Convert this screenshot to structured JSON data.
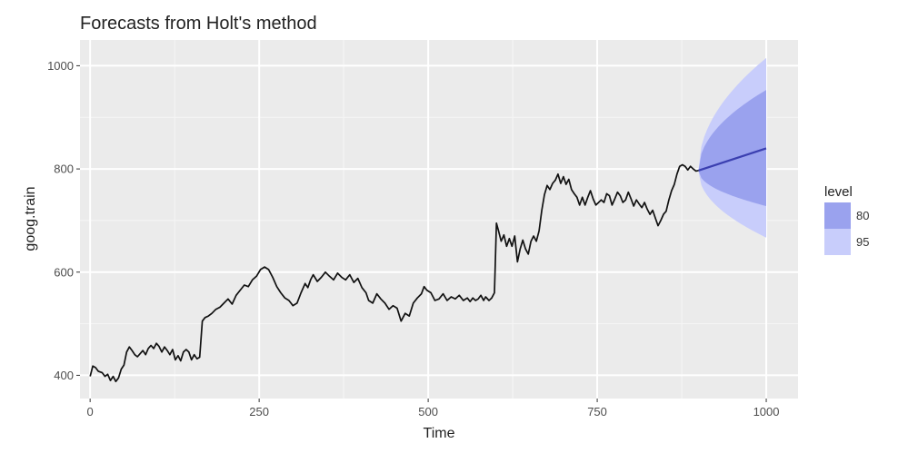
{
  "chart_data": {
    "type": "line",
    "title": "Forecasts from Holt's method",
    "xlabel": "Time",
    "ylabel": "goog.train",
    "xlim": [
      -15,
      1047
    ],
    "ylim": [
      355,
      1050
    ],
    "x_ticks": [
      0,
      250,
      500,
      750,
      1000
    ],
    "y_ticks": [
      400,
      600,
      800,
      1000
    ],
    "grid": true,
    "legend_position": "right",
    "legend": {
      "title": "level",
      "items": [
        {
          "label": "80",
          "color": "#9aa2ee"
        },
        {
          "label": "95",
          "color": "#c8cdfb"
        }
      ]
    },
    "series": [
      {
        "kind": "observed",
        "color": "#111111",
        "points": [
          [
            0,
            398
          ],
          [
            4,
            418
          ],
          [
            8,
            415
          ],
          [
            12,
            408
          ],
          [
            18,
            405
          ],
          [
            22,
            398
          ],
          [
            26,
            402
          ],
          [
            30,
            390
          ],
          [
            34,
            398
          ],
          [
            38,
            388
          ],
          [
            42,
            395
          ],
          [
            46,
            412
          ],
          [
            50,
            420
          ],
          [
            54,
            445
          ],
          [
            58,
            455
          ],
          [
            62,
            448
          ],
          [
            66,
            440
          ],
          [
            70,
            436
          ],
          [
            74,
            442
          ],
          [
            78,
            448
          ],
          [
            82,
            440
          ],
          [
            86,
            452
          ],
          [
            90,
            458
          ],
          [
            94,
            452
          ],
          [
            98,
            462
          ],
          [
            102,
            456
          ],
          [
            106,
            445
          ],
          [
            110,
            455
          ],
          [
            114,
            448
          ],
          [
            118,
            440
          ],
          [
            122,
            450
          ],
          [
            126,
            430
          ],
          [
            130,
            438
          ],
          [
            134,
            428
          ],
          [
            138,
            445
          ],
          [
            142,
            450
          ],
          [
            146,
            445
          ],
          [
            150,
            430
          ],
          [
            154,
            440
          ],
          [
            158,
            432
          ],
          [
            162,
            435
          ],
          [
            166,
            505
          ],
          [
            170,
            512
          ],
          [
            175,
            515
          ],
          [
            180,
            520
          ],
          [
            186,
            528
          ],
          [
            192,
            532
          ],
          [
            198,
            540
          ],
          [
            204,
            548
          ],
          [
            210,
            538
          ],
          [
            216,
            555
          ],
          [
            222,
            565
          ],
          [
            228,
            575
          ],
          [
            234,
            572
          ],
          [
            240,
            585
          ],
          [
            246,
            592
          ],
          [
            252,
            605
          ],
          [
            258,
            610
          ],
          [
            264,
            605
          ],
          [
            270,
            590
          ],
          [
            276,
            572
          ],
          [
            282,
            560
          ],
          [
            288,
            550
          ],
          [
            294,
            545
          ],
          [
            300,
            535
          ],
          [
            306,
            540
          ],
          [
            312,
            560
          ],
          [
            318,
            578
          ],
          [
            322,
            570
          ],
          [
            326,
            585
          ],
          [
            330,
            595
          ],
          [
            336,
            582
          ],
          [
            342,
            590
          ],
          [
            348,
            600
          ],
          [
            354,
            592
          ],
          [
            360,
            585
          ],
          [
            366,
            598
          ],
          [
            372,
            590
          ],
          [
            378,
            585
          ],
          [
            384,
            595
          ],
          [
            390,
            580
          ],
          [
            396,
            588
          ],
          [
            402,
            570
          ],
          [
            408,
            560
          ],
          [
            412,
            545
          ],
          [
            418,
            540
          ],
          [
            424,
            558
          ],
          [
            430,
            548
          ],
          [
            436,
            540
          ],
          [
            442,
            528
          ],
          [
            448,
            535
          ],
          [
            454,
            530
          ],
          [
            460,
            505
          ],
          [
            466,
            520
          ],
          [
            472,
            515
          ],
          [
            478,
            540
          ],
          [
            484,
            550
          ],
          [
            490,
            558
          ],
          [
            494,
            572
          ],
          [
            498,
            565
          ],
          [
            504,
            560
          ],
          [
            510,
            545
          ],
          [
            516,
            548
          ],
          [
            522,
            558
          ],
          [
            528,
            545
          ],
          [
            534,
            552
          ],
          [
            540,
            548
          ],
          [
            546,
            555
          ],
          [
            552,
            545
          ],
          [
            558,
            550
          ],
          [
            562,
            543
          ],
          [
            566,
            550
          ],
          [
            570,
            545
          ],
          [
            574,
            548
          ],
          [
            578,
            555
          ],
          [
            582,
            545
          ],
          [
            585,
            552
          ],
          [
            590,
            545
          ],
          [
            594,
            550
          ],
          [
            598,
            560
          ],
          [
            601,
            695
          ],
          [
            604,
            680
          ],
          [
            608,
            660
          ],
          [
            612,
            672
          ],
          [
            616,
            650
          ],
          [
            620,
            665
          ],
          [
            624,
            650
          ],
          [
            628,
            670
          ],
          [
            632,
            620
          ],
          [
            636,
            645
          ],
          [
            640,
            662
          ],
          [
            644,
            645
          ],
          [
            648,
            635
          ],
          [
            652,
            660
          ],
          [
            656,
            670
          ],
          [
            660,
            660
          ],
          [
            664,
            680
          ],
          [
            668,
            720
          ],
          [
            672,
            750
          ],
          [
            676,
            768
          ],
          [
            680,
            760
          ],
          [
            684,
            772
          ],
          [
            688,
            778
          ],
          [
            692,
            790
          ],
          [
            696,
            772
          ],
          [
            700,
            785
          ],
          [
            704,
            770
          ],
          [
            708,
            780
          ],
          [
            712,
            760
          ],
          [
            716,
            752
          ],
          [
            720,
            745
          ],
          [
            724,
            730
          ],
          [
            728,
            745
          ],
          [
            732,
            730
          ],
          [
            736,
            745
          ],
          [
            740,
            758
          ],
          [
            744,
            742
          ],
          [
            748,
            730
          ],
          [
            752,
            735
          ],
          [
            756,
            740
          ],
          [
            760,
            735
          ],
          [
            764,
            752
          ],
          [
            768,
            748
          ],
          [
            772,
            730
          ],
          [
            776,
            742
          ],
          [
            780,
            755
          ],
          [
            784,
            748
          ],
          [
            788,
            735
          ],
          [
            792,
            740
          ],
          [
            796,
            755
          ],
          [
            800,
            742
          ],
          [
            804,
            728
          ],
          [
            808,
            740
          ],
          [
            812,
            732
          ],
          [
            816,
            725
          ],
          [
            820,
            735
          ],
          [
            824,
            722
          ],
          [
            828,
            712
          ],
          [
            832,
            720
          ],
          [
            836,
            705
          ],
          [
            840,
            690
          ],
          [
            844,
            700
          ],
          [
            848,
            712
          ],
          [
            852,
            718
          ],
          [
            856,
            740
          ],
          [
            860,
            758
          ],
          [
            864,
            770
          ],
          [
            868,
            790
          ],
          [
            872,
            805
          ],
          [
            876,
            808
          ],
          [
            880,
            805
          ],
          [
            884,
            798
          ],
          [
            888,
            805
          ],
          [
            892,
            800
          ],
          [
            896,
            796
          ],
          [
            900,
            797
          ]
        ]
      },
      {
        "kind": "forecast",
        "color": "#3b3fb0",
        "points": [
          [
            900,
            797
          ],
          [
            1000,
            840
          ]
        ]
      }
    ],
    "intervals": [
      {
        "level": "95",
        "color": "#c8cdfb",
        "x": [
          900,
          1000
        ],
        "upper": [
          800,
          1015
        ],
        "lower": [
          794,
          667
        ]
      },
      {
        "level": "80",
        "color": "#9aa2ee",
        "x": [
          900,
          1000
        ],
        "upper": [
          798,
          953
        ],
        "lower": [
          796,
          728
        ]
      }
    ]
  }
}
